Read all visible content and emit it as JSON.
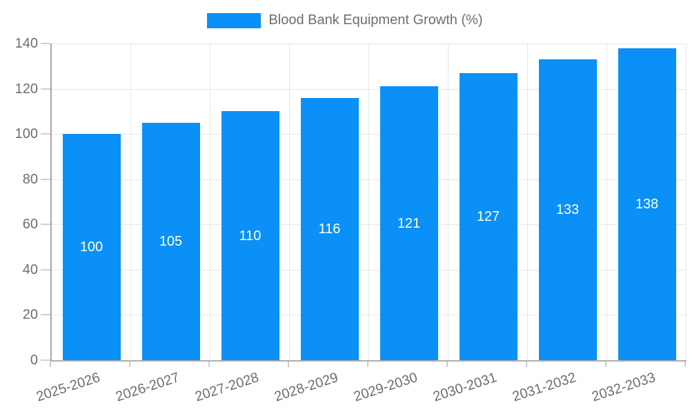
{
  "chart_data": {
    "type": "bar",
    "title": "",
    "legend": "Blood Bank Equipment Growth (%)",
    "legend_position": "top-center",
    "categories": [
      "2025-2026",
      "2026-2027",
      "2027-2028",
      "2028-2029",
      "2029-2030",
      "2030-2031",
      "2031-2032",
      "2032-2033"
    ],
    "values": [
      100,
      105,
      110,
      116,
      121,
      127,
      133,
      138
    ],
    "value_labels_shown": true,
    "xlabel": "",
    "ylabel": "",
    "ylim": [
      0,
      140
    ],
    "ytick_step": 20,
    "grid": true,
    "colors": {
      "bar": "#0a90f6",
      "value_label": "#ffffff",
      "axis_line": "#a6a6a6",
      "grid_line": "#e6e6e6",
      "tick_mark": "#d0d0d0",
      "text": "#6e6e6e"
    }
  }
}
